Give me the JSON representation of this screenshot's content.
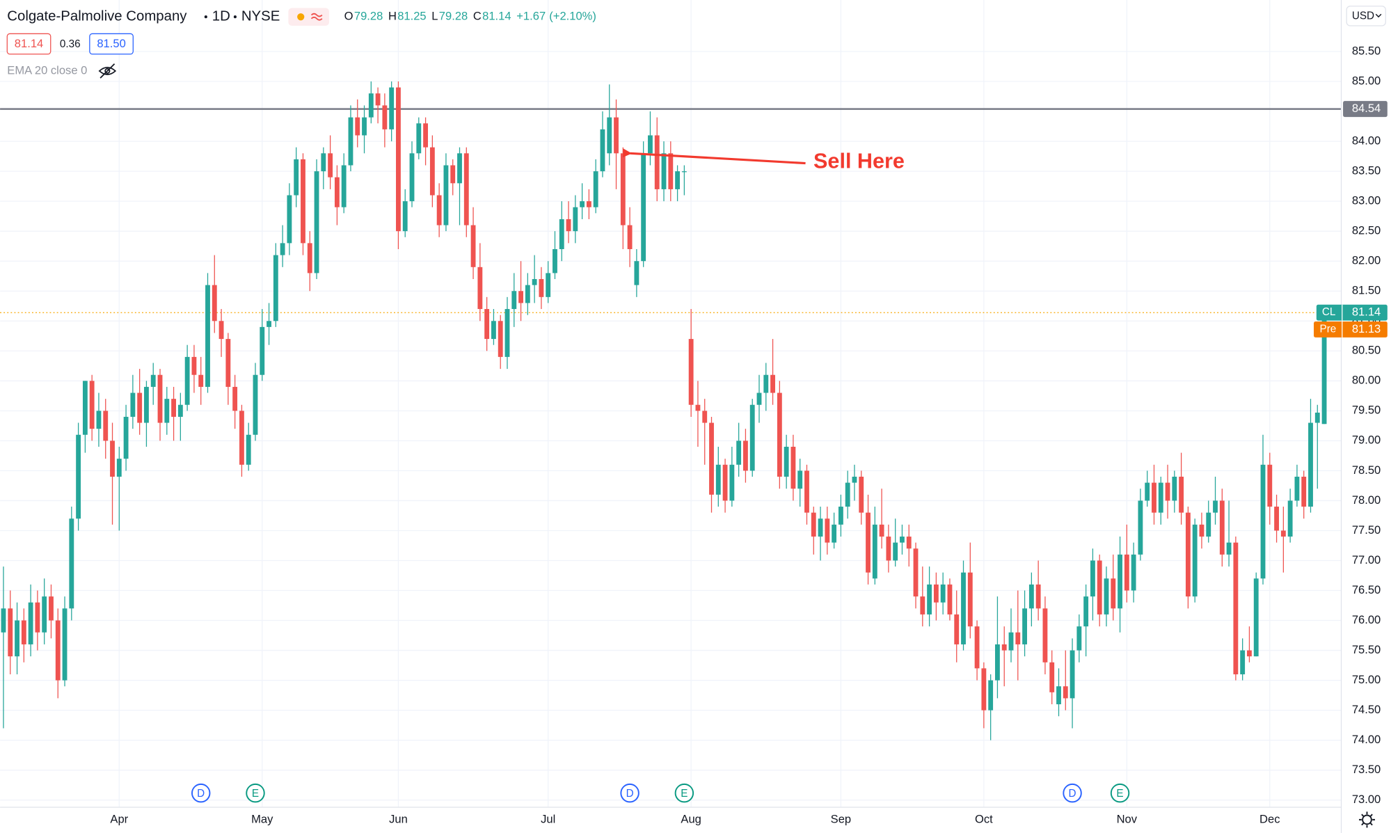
{
  "header": {
    "symbol": "Colgate-Palmolive Company",
    "interval": "1D",
    "exchange": "NYSE",
    "ohlc_legend": [
      {
        "label": "O",
        "value": "79.28"
      },
      {
        "label": "H",
        "value": "81.25"
      },
      {
        "label": "L",
        "value": "79.28"
      },
      {
        "label": "C",
        "value": "81.14"
      }
    ],
    "change": "+1.67",
    "change_pct": "(+2.10%)",
    "bid": "81.14",
    "spread": "0.36",
    "ask": "81.50",
    "indicator": "EMA 20 close 0",
    "currency": "USD"
  },
  "chart_data": {
    "type": "candlestick",
    "up_color": "#26a69a",
    "down_color": "#ef5350",
    "grid": true,
    "ylim": [
      72.88,
      86.36
    ],
    "xlim": [
      -0.5,
      196.5
    ],
    "yticks": [
      {
        "value": 73,
        "label": "73.00"
      },
      {
        "value": 73.5,
        "label": "73.50"
      },
      {
        "value": 74,
        "label": "74.00"
      },
      {
        "value": 74.5,
        "label": "74.50"
      },
      {
        "value": 75,
        "label": "75.00"
      },
      {
        "value": 75.5,
        "label": "75.50"
      },
      {
        "value": 76,
        "label": "76.00"
      },
      {
        "value": 76.5,
        "label": "76.50"
      },
      {
        "value": 77,
        "label": "77.00"
      },
      {
        "value": 77.5,
        "label": "77.50"
      },
      {
        "value": 78,
        "label": "78.00"
      },
      {
        "value": 78.5,
        "label": "78.50"
      },
      {
        "value": 79,
        "label": "79.00"
      },
      {
        "value": 79.5,
        "label": "79.50"
      },
      {
        "value": 80,
        "label": "80.00"
      },
      {
        "value": 80.5,
        "label": "80.50"
      },
      {
        "value": 81,
        "label": "81.00"
      },
      {
        "value": 81.5,
        "label": "81.50"
      },
      {
        "value": 82,
        "label": "82.00"
      },
      {
        "value": 82.5,
        "label": "82.50"
      },
      {
        "value": 83,
        "label": "83.00"
      },
      {
        "value": 83.5,
        "label": "83.50"
      },
      {
        "value": 84,
        "label": "84.00"
      },
      {
        "value": 85,
        "label": "85.00"
      },
      {
        "value": 85.5,
        "label": "85.50"
      }
    ],
    "xticks": [
      {
        "value": 17,
        "label": "Apr"
      },
      {
        "value": 38,
        "label": "May"
      },
      {
        "value": 58,
        "label": "Jun"
      },
      {
        "value": 80,
        "label": "Jul"
      },
      {
        "value": 101,
        "label": "Aug"
      },
      {
        "value": 123,
        "label": "Sep"
      },
      {
        "value": 144,
        "label": "Oct"
      },
      {
        "value": 165,
        "label": "Nov"
      },
      {
        "value": 186,
        "label": "Dec"
      }
    ],
    "resistance": {
      "value": 84.54,
      "label": "84.54",
      "color": "#787b86"
    },
    "last_price": {
      "value": 81.14,
      "symbol": "CL",
      "label": "81.14",
      "color": "#26a69a",
      "line_color": "#f7a600"
    },
    "pre_market": {
      "label": "Pre",
      "price": "81.13",
      "color": "#f57c00"
    },
    "annotation": {
      "text": "Sell Here",
      "color": "#f23a2e",
      "target_index": 91
    },
    "events": [
      {
        "index": 29,
        "label": "D",
        "color": "#2962ff"
      },
      {
        "index": 37,
        "label": "E",
        "color": "#089981"
      },
      {
        "index": 92,
        "label": "D",
        "color": "#2962ff"
      },
      {
        "index": 100,
        "label": "E",
        "color": "#089981"
      },
      {
        "index": 157,
        "label": "D",
        "color": "#2962ff"
      },
      {
        "index": 164,
        "label": "E",
        "color": "#089981"
      }
    ],
    "ohlc": [
      [
        75.8,
        76.9,
        74.2,
        76.2
      ],
      [
        76.2,
        76.5,
        75.1,
        75.4
      ],
      [
        75.4,
        76.3,
        75.1,
        76.0
      ],
      [
        76.0,
        76.2,
        75.3,
        75.6
      ],
      [
        75.6,
        76.6,
        75.4,
        76.3
      ],
      [
        76.3,
        76.5,
        75.5,
        75.8
      ],
      [
        75.8,
        76.7,
        75.6,
        76.4
      ],
      [
        76.4,
        76.6,
        75.7,
        76.0
      ],
      [
        76.0,
        76.2,
        74.7,
        75.0
      ],
      [
        75.0,
        76.4,
        74.9,
        76.2
      ],
      [
        76.2,
        77.9,
        76.0,
        77.7
      ],
      [
        77.7,
        79.3,
        77.5,
        79.1
      ],
      [
        79.1,
        80.0,
        78.8,
        80.0
      ],
      [
        80.0,
        80.1,
        79.0,
        79.2
      ],
      [
        79.2,
        79.8,
        78.9,
        79.5
      ],
      [
        79.5,
        79.7,
        78.7,
        79.0
      ],
      [
        79.0,
        79.3,
        77.6,
        78.4
      ],
      [
        78.4,
        78.9,
        77.5,
        78.7
      ],
      [
        78.7,
        79.6,
        78.5,
        79.4
      ],
      [
        79.4,
        80.1,
        79.2,
        79.8
      ],
      [
        79.8,
        80.2,
        79.1,
        79.3
      ],
      [
        79.3,
        80.0,
        78.9,
        79.9
      ],
      [
        79.9,
        80.3,
        79.6,
        80.1
      ],
      [
        80.1,
        80.2,
        79.0,
        79.3
      ],
      [
        79.3,
        79.9,
        79.1,
        79.7
      ],
      [
        79.7,
        79.9,
        79.0,
        79.4
      ],
      [
        79.4,
        79.8,
        79.0,
        79.6
      ],
      [
        79.6,
        80.6,
        79.5,
        80.4
      ],
      [
        80.4,
        80.6,
        79.8,
        80.1
      ],
      [
        80.1,
        80.4,
        79.6,
        79.9
      ],
      [
        79.9,
        81.8,
        79.8,
        81.6
      ],
      [
        81.6,
        82.1,
        80.8,
        81.0
      ],
      [
        81.0,
        81.2,
        80.4,
        80.7
      ],
      [
        80.7,
        80.8,
        79.6,
        79.9
      ],
      [
        79.9,
        80.1,
        79.2,
        79.5
      ],
      [
        79.5,
        79.6,
        78.4,
        78.6
      ],
      [
        78.6,
        79.3,
        78.5,
        79.1
      ],
      [
        79.1,
        80.3,
        79.0,
        80.1
      ],
      [
        80.1,
        81.2,
        80.0,
        80.9
      ],
      [
        80.9,
        81.3,
        80.6,
        81.0
      ],
      [
        81.0,
        82.3,
        80.9,
        82.1
      ],
      [
        82.1,
        82.6,
        81.9,
        82.3
      ],
      [
        82.3,
        83.3,
        82.1,
        83.1
      ],
      [
        83.1,
        83.9,
        82.9,
        83.7
      ],
      [
        83.7,
        83.8,
        82.1,
        82.3
      ],
      [
        82.3,
        82.5,
        81.5,
        81.8
      ],
      [
        81.8,
        83.7,
        81.7,
        83.5
      ],
      [
        83.5,
        83.9,
        83.2,
        83.8
      ],
      [
        83.8,
        84.1,
        83.2,
        83.4
      ],
      [
        83.4,
        83.6,
        82.6,
        82.9
      ],
      [
        82.9,
        83.8,
        82.8,
        83.6
      ],
      [
        83.6,
        84.6,
        83.5,
        84.4
      ],
      [
        84.4,
        84.7,
        83.9,
        84.1
      ],
      [
        84.1,
        84.6,
        83.8,
        84.4
      ],
      [
        84.4,
        85.0,
        84.3,
        84.8
      ],
      [
        84.8,
        84.9,
        84.3,
        84.6
      ],
      [
        84.6,
        84.8,
        83.9,
        84.2
      ],
      [
        84.2,
        85.0,
        84.0,
        84.9
      ],
      [
        84.9,
        85.0,
        82.2,
        82.5
      ],
      [
        82.5,
        83.2,
        82.4,
        83.0
      ],
      [
        83.0,
        84.0,
        82.9,
        83.8
      ],
      [
        83.8,
        84.4,
        83.7,
        84.3
      ],
      [
        84.3,
        84.4,
        83.6,
        83.9
      ],
      [
        83.9,
        84.1,
        82.9,
        83.1
      ],
      [
        83.1,
        83.3,
        82.4,
        82.6
      ],
      [
        82.6,
        83.8,
        82.5,
        83.6
      ],
      [
        83.6,
        83.7,
        83.1,
        83.3
      ],
      [
        83.3,
        83.9,
        82.6,
        83.8
      ],
      [
        83.8,
        83.9,
        82.4,
        82.6
      ],
      [
        82.6,
        82.9,
        81.7,
        81.9
      ],
      [
        81.9,
        82.3,
        81.0,
        81.2
      ],
      [
        81.2,
        81.4,
        80.5,
        80.7
      ],
      [
        80.7,
        81.2,
        80.6,
        81.0
      ],
      [
        81.0,
        81.1,
        80.2,
        80.4
      ],
      [
        80.4,
        81.4,
        80.2,
        81.2
      ],
      [
        81.2,
        81.8,
        80.9,
        81.5
      ],
      [
        81.5,
        82.0,
        81.0,
        81.3
      ],
      [
        81.3,
        81.8,
        81.1,
        81.6
      ],
      [
        81.6,
        82.1,
        81.3,
        81.7
      ],
      [
        81.7,
        81.9,
        81.2,
        81.4
      ],
      [
        81.4,
        82.0,
        81.3,
        81.8
      ],
      [
        81.8,
        82.5,
        81.7,
        82.2
      ],
      [
        82.2,
        83.0,
        82.0,
        82.7
      ],
      [
        82.7,
        83.0,
        82.3,
        82.5
      ],
      [
        82.5,
        83.1,
        82.3,
        82.9
      ],
      [
        82.9,
        83.3,
        82.7,
        83.0
      ],
      [
        83.0,
        83.2,
        82.7,
        82.9
      ],
      [
        82.9,
        83.7,
        82.8,
        83.5
      ],
      [
        83.5,
        84.5,
        83.4,
        84.2
      ],
      [
        83.8,
        84.95,
        83.6,
        84.4
      ],
      [
        84.4,
        84.7,
        83.2,
        83.8
      ],
      [
        83.8,
        83.9,
        82.2,
        82.6
      ],
      [
        82.6,
        82.9,
        81.9,
        82.2
      ],
      [
        81.6,
        82.2,
        81.4,
        82.0
      ],
      [
        82.0,
        84.0,
        81.9,
        83.8
      ],
      [
        83.8,
        84.5,
        83.6,
        84.1
      ],
      [
        84.1,
        84.4,
        83.0,
        83.2
      ],
      [
        83.2,
        84.0,
        83.0,
        83.8
      ],
      [
        83.8,
        84.0,
        83.0,
        83.2
      ],
      [
        83.2,
        83.6,
        83.0,
        83.5
      ],
      [
        83.5,
        83.6,
        83.1,
        83.5
      ],
      [
        80.7,
        81.2,
        79.4,
        79.6
      ],
      [
        79.6,
        80.0,
        78.9,
        79.5
      ],
      [
        79.5,
        79.7,
        78.6,
        79.3
      ],
      [
        79.3,
        79.4,
        77.8,
        78.1
      ],
      [
        78.1,
        78.9,
        77.9,
        78.6
      ],
      [
        78.6,
        78.7,
        77.8,
        78.0
      ],
      [
        78.0,
        78.9,
        77.9,
        78.6
      ],
      [
        78.6,
        79.3,
        78.4,
        79.0
      ],
      [
        79.0,
        79.2,
        78.3,
        78.5
      ],
      [
        78.5,
        79.7,
        78.4,
        79.6
      ],
      [
        79.6,
        80.1,
        79.3,
        79.8
      ],
      [
        79.8,
        80.3,
        79.5,
        80.1
      ],
      [
        80.1,
        80.7,
        79.6,
        79.8
      ],
      [
        79.8,
        80.0,
        78.2,
        78.4
      ],
      [
        78.4,
        79.1,
        78.2,
        78.9
      ],
      [
        78.9,
        79.1,
        78.0,
        78.2
      ],
      [
        78.2,
        78.7,
        77.9,
        78.5
      ],
      [
        78.5,
        78.6,
        77.6,
        77.8
      ],
      [
        77.8,
        77.9,
        77.1,
        77.4
      ],
      [
        77.4,
        77.9,
        77.0,
        77.7
      ],
      [
        77.7,
        77.9,
        77.1,
        77.3
      ],
      [
        77.3,
        77.8,
        77.2,
        77.6
      ],
      [
        77.6,
        78.1,
        77.4,
        77.9
      ],
      [
        77.9,
        78.5,
        77.7,
        78.3
      ],
      [
        78.3,
        78.6,
        78.0,
        78.4
      ],
      [
        78.4,
        78.5,
        77.6,
        77.8
      ],
      [
        77.8,
        78.1,
        76.6,
        76.8
      ],
      [
        76.7,
        77.9,
        76.6,
        77.6
      ],
      [
        77.6,
        78.2,
        77.2,
        77.4
      ],
      [
        77.4,
        77.6,
        76.8,
        77.0
      ],
      [
        77.0,
        77.7,
        76.9,
        77.3
      ],
      [
        77.3,
        77.6,
        77.1,
        77.4
      ],
      [
        77.4,
        77.6,
        76.9,
        77.2
      ],
      [
        77.2,
        77.3,
        76.2,
        76.4
      ],
      [
        76.4,
        76.9,
        75.9,
        76.1
      ],
      [
        76.1,
        76.9,
        75.9,
        76.6
      ],
      [
        76.6,
        76.8,
        76.0,
        76.3
      ],
      [
        76.3,
        76.8,
        76.1,
        76.6
      ],
      [
        76.6,
        76.7,
        76.0,
        76.1
      ],
      [
        76.1,
        76.5,
        75.3,
        75.6
      ],
      [
        75.6,
        77.0,
        75.5,
        76.8
      ],
      [
        76.8,
        77.3,
        75.7,
        75.9
      ],
      [
        75.9,
        76.0,
        75.0,
        75.2
      ],
      [
        75.2,
        75.3,
        74.2,
        74.5
      ],
      [
        74.5,
        75.1,
        74.0,
        75.0
      ],
      [
        75.0,
        76.4,
        74.7,
        75.6
      ],
      [
        75.6,
        75.9,
        74.9,
        75.5
      ],
      [
        75.5,
        76.2,
        75.3,
        75.8
      ],
      [
        75.8,
        76.5,
        75.0,
        75.6
      ],
      [
        75.6,
        76.5,
        75.4,
        76.2
      ],
      [
        76.2,
        76.8,
        75.9,
        76.6
      ],
      [
        76.6,
        77.0,
        76.0,
        76.2
      ],
      [
        76.2,
        76.4,
        75.1,
        75.3
      ],
      [
        75.3,
        75.5,
        74.6,
        74.8
      ],
      [
        74.6,
        75.2,
        74.4,
        74.9
      ],
      [
        74.9,
        75.5,
        74.5,
        74.7
      ],
      [
        74.7,
        75.7,
        74.2,
        75.5
      ],
      [
        75.5,
        76.1,
        75.3,
        75.9
      ],
      [
        75.9,
        76.6,
        75.4,
        76.4
      ],
      [
        76.4,
        77.2,
        76.0,
        77.0
      ],
      [
        77.0,
        77.1,
        75.9,
        76.1
      ],
      [
        76.1,
        76.9,
        75.9,
        76.7
      ],
      [
        76.7,
        77.1,
        76.0,
        76.2
      ],
      [
        76.2,
        77.4,
        75.8,
        77.1
      ],
      [
        77.1,
        77.6,
        76.3,
        76.5
      ],
      [
        76.5,
        77.3,
        76.3,
        77.1
      ],
      [
        77.1,
        78.2,
        77.0,
        78.0
      ],
      [
        78.0,
        78.5,
        77.9,
        78.3
      ],
      [
        78.3,
        78.6,
        77.6,
        77.8
      ],
      [
        77.8,
        78.4,
        77.6,
        78.3
      ],
      [
        78.3,
        78.6,
        77.7,
        78.0
      ],
      [
        78.0,
        78.5,
        77.8,
        78.4
      ],
      [
        78.4,
        78.8,
        77.6,
        77.8
      ],
      [
        77.8,
        77.9,
        76.2,
        76.4
      ],
      [
        76.4,
        77.7,
        76.3,
        77.6
      ],
      [
        77.6,
        77.8,
        77.2,
        77.4
      ],
      [
        77.4,
        78.0,
        77.3,
        77.8
      ],
      [
        77.8,
        78.4,
        77.6,
        78.0
      ],
      [
        78.0,
        78.2,
        76.9,
        77.1
      ],
      [
        77.1,
        78.0,
        76.9,
        77.3
      ],
      [
        77.3,
        77.4,
        75.0,
        75.1
      ],
      [
        75.1,
        75.7,
        75.0,
        75.5
      ],
      [
        75.5,
        75.9,
        75.3,
        75.4
      ],
      [
        75.4,
        76.8,
        75.4,
        76.7
      ],
      [
        76.7,
        79.1,
        76.6,
        78.6
      ],
      [
        78.6,
        78.8,
        77.6,
        77.9
      ],
      [
        77.9,
        78.1,
        77.3,
        77.5
      ],
      [
        77.5,
        77.9,
        76.8,
        77.4
      ],
      [
        77.4,
        78.2,
        77.3,
        78.0
      ],
      [
        78.0,
        78.6,
        77.9,
        78.4
      ],
      [
        78.4,
        78.5,
        77.7,
        77.9
      ],
      [
        77.9,
        79.7,
        77.8,
        79.3
      ],
      [
        79.3,
        79.6,
        78.2,
        79.47
      ],
      [
        79.28,
        81.25,
        79.28,
        81.14
      ]
    ]
  }
}
